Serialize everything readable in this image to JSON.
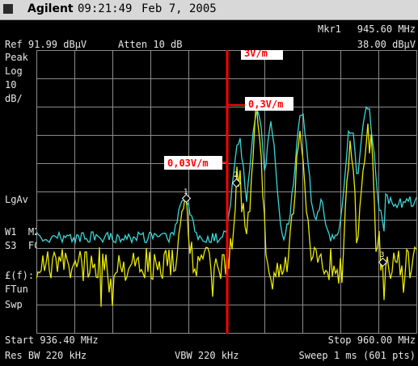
{
  "titlebar": {
    "brand": "Agilent",
    "time": "09:21:49",
    "date": "Feb 7, 2005"
  },
  "header": {
    "marker_label": "Mkr1",
    "marker_freq": "945.60 MHz",
    "ref": "Ref 91.99 dBμV",
    "atten": "Atten 10 dB",
    "marker_level": "38.00 dBμV"
  },
  "side": {
    "peak": "Peak",
    "log": "Log",
    "scale": "10",
    "unit": "dB/",
    "lgav": "LgAv",
    "w1m2": "W1  M2",
    "s3fc": "S3  FC",
    "ef": "£(f):",
    "ftun": "FTun",
    "swp": "Swp"
  },
  "footer": {
    "start": "Start 936.40 MHz",
    "stop": "Stop 960.00 MHz",
    "res_bw": "Res BW 220 kHz",
    "vbw": "VBW 220 kHz",
    "sweep": "Sweep 1 ms (601 pts)"
  },
  "annotations": {
    "a1": "3V/m",
    "a2": "0,3V/m",
    "a3": "0,03V/m"
  },
  "markers": {
    "m1": "1",
    "m2": "2",
    "m3": "3"
  },
  "colors": {
    "trace_max": "#3ad6d6",
    "trace_avg": "#e8e800",
    "annotation": "#ff0000",
    "grid": "#8c8c8c"
  }
}
